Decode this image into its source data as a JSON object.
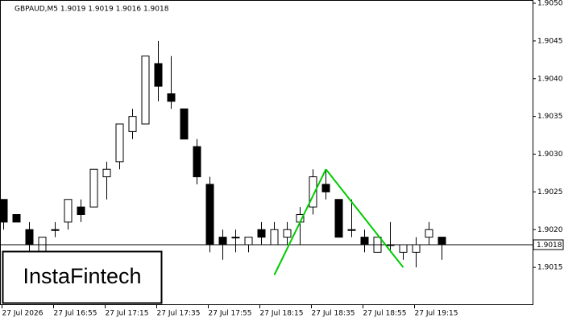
{
  "chart_data": {
    "type": "candlestick",
    "title": "GBPAUD,M5  1.9019 1.9019 1.9016 1.9018",
    "logo": "InstaFintech",
    "categories": [
      "27 Jul 2026",
      null,
      null,
      null,
      "27 Jul 16:55",
      null,
      null,
      null,
      "27 Jul 17:15",
      null,
      null,
      null,
      "27 Jul 17:35",
      null,
      null,
      null,
      "27 Jul 17:55",
      null,
      null,
      null,
      "27 Jul 18:15",
      null,
      null,
      null,
      "27 Jul 18:35",
      null,
      null,
      null,
      "27 Jul 18:55",
      null,
      null,
      null,
      "27 Jul 19:15",
      null,
      null
    ],
    "open": [
      1.9024,
      1.9022,
      1.902,
      1.9017,
      1.902,
      1.9021,
      1.9023,
      1.9023,
      1.9027,
      1.9029,
      1.9033,
      1.9034,
      1.9042,
      1.9038,
      1.9036,
      1.9031,
      1.9026,
      1.9019,
      1.9019,
      1.9018,
      1.902,
      1.9018,
      1.9019,
      1.9021,
      1.9023,
      1.9026,
      1.9024,
      1.902,
      1.9019,
      1.9017,
      1.9018,
      1.9017,
      1.9017,
      1.9019,
      1.9019
    ],
    "high": [
      1.9024,
      1.9022,
      1.9021,
      1.9019,
      1.9021,
      1.9024,
      1.9024,
      1.9028,
      1.9029,
      1.9034,
      1.9036,
      1.9043,
      1.9045,
      1.9043,
      1.9036,
      1.9032,
      1.9027,
      1.902,
      1.902,
      1.9019,
      1.9021,
      1.9021,
      1.9021,
      1.9023,
      1.9028,
      1.9028,
      1.9024,
      1.9024,
      1.902,
      1.9019,
      1.9021,
      1.9018,
      1.9019,
      1.9021,
      1.9019
    ],
    "low": [
      1.902,
      1.9021,
      1.9016,
      1.9016,
      1.9019,
      1.902,
      1.9021,
      1.9023,
      1.9024,
      1.9028,
      1.9032,
      1.9034,
      1.9037,
      1.9036,
      1.9032,
      1.9026,
      1.9017,
      1.9016,
      1.9017,
      1.9017,
      1.9018,
      1.9018,
      1.9018,
      1.9018,
      1.9022,
      1.9024,
      1.9019,
      1.9019,
      1.9017,
      1.9017,
      1.9017,
      1.9016,
      1.9015,
      1.9018,
      1.9016
    ],
    "close": [
      1.9021,
      1.9021,
      1.9018,
      1.9019,
      1.902,
      1.9024,
      1.9022,
      1.9028,
      1.9028,
      1.9034,
      1.9035,
      1.9043,
      1.9039,
      1.9037,
      1.9032,
      1.9027,
      1.9018,
      1.9018,
      1.9019,
      1.9019,
      1.9019,
      1.902,
      1.902,
      1.9022,
      1.9027,
      1.9025,
      1.9019,
      1.902,
      1.9018,
      1.9019,
      1.9018,
      1.9018,
      1.9018,
      1.902,
      1.9018
    ],
    "last_price": 1.9018,
    "pattern": {
      "color": "#00cc00",
      "category_index": [
        21,
        25,
        31
      ],
      "values": [
        1.9014,
        1.9028,
        1.9015
      ]
    },
    "ylim": [
      1.901,
      1.905
    ],
    "yticks": [
      1.9015,
      {
        "value": 1.902,
        "label": "1.9020"
      },
      1.9025,
      {
        "value": 1.903,
        "label": "1.9030"
      },
      1.9035,
      {
        "value": 1.904,
        "label": "1.9040"
      },
      1.9045,
      {
        "value": 1.905,
        "label": "1.9050"
      }
    ]
  }
}
